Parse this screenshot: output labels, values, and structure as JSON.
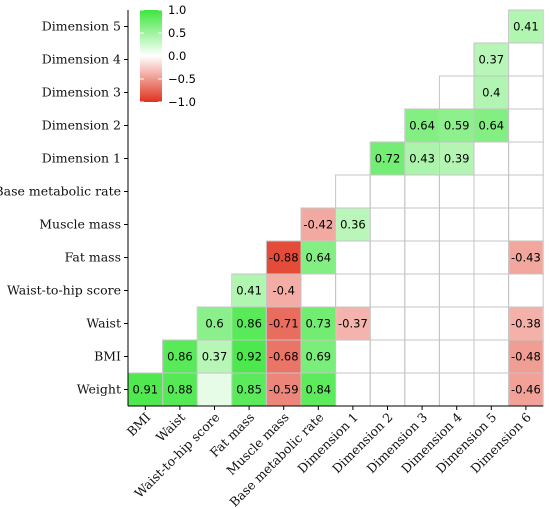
{
  "chart_data": {
    "type": "heatmap",
    "title": "",
    "xlabel": "",
    "ylabel": "",
    "x_labels": [
      "BMI",
      "Waist",
      "Waist-to-hip score",
      "Fat mass",
      "Muscle mass",
      "Base metabolic rate",
      "Dimension 1",
      "Dimension 2",
      "Dimension 3",
      "Dimension 4",
      "Dimension 5",
      "Dimension 6"
    ],
    "y_labels": [
      "Weight",
      "BMI",
      "Waist",
      "Waist-to-hip score",
      "Fat mass",
      "Muscle mass",
      "Base metabolic rate",
      "Dimension 1",
      "Dimension 2",
      "Dimension 3",
      "Dimension 4",
      "Dimension 5"
    ],
    "color_range": [
      -1.0,
      1.0
    ],
    "colors": {
      "low": "#e0321e",
      "mid": "#ffffff",
      "high": "#3ee63e"
    },
    "legend": {
      "position": "top-left",
      "ticks": [
        1.0,
        0.5,
        0.0,
        -0.5,
        -1.0
      ],
      "tick_labels": [
        "1.0",
        "0.5",
        "0.0",
        "−0.5",
        "−1.0"
      ]
    },
    "cells": [
      {
        "x": "BMI",
        "y": "Weight",
        "value": 0.91,
        "label": "0.91"
      },
      {
        "x": "Waist",
        "y": "Weight",
        "value": 0.88,
        "label": "0.88"
      },
      {
        "x": "Waist-to-hip score",
        "y": "Weight",
        "value": 0.13,
        "label": ""
      },
      {
        "x": "Fat mass",
        "y": "Weight",
        "value": 0.85,
        "label": "0.85"
      },
      {
        "x": "Muscle mass",
        "y": "Weight",
        "value": -0.59,
        "label": "-0.59"
      },
      {
        "x": "Base metabolic rate",
        "y": "Weight",
        "value": 0.84,
        "label": "0.84"
      },
      {
        "x": "Dimension 6",
        "y": "Weight",
        "value": -0.46,
        "label": "-0.46"
      },
      {
        "x": "Waist",
        "y": "BMI",
        "value": 0.86,
        "label": "0.86"
      },
      {
        "x": "Waist-to-hip score",
        "y": "BMI",
        "value": 0.37,
        "label": "0.37"
      },
      {
        "x": "Fat mass",
        "y": "BMI",
        "value": 0.92,
        "label": "0.92"
      },
      {
        "x": "Muscle mass",
        "y": "BMI",
        "value": -0.68,
        "label": "-0.68"
      },
      {
        "x": "Base metabolic rate",
        "y": "BMI",
        "value": 0.69,
        "label": "0.69"
      },
      {
        "x": "Dimension 6",
        "y": "BMI",
        "value": -0.48,
        "label": "-0.48"
      },
      {
        "x": "Waist-to-hip score",
        "y": "Waist",
        "value": 0.6,
        "label": "0.6"
      },
      {
        "x": "Fat mass",
        "y": "Waist",
        "value": 0.86,
        "label": "0.86"
      },
      {
        "x": "Muscle mass",
        "y": "Waist",
        "value": -0.71,
        "label": "-0.71"
      },
      {
        "x": "Base metabolic rate",
        "y": "Waist",
        "value": 0.73,
        "label": "0.73"
      },
      {
        "x": "Dimension 1",
        "y": "Waist",
        "value": -0.37,
        "label": "-0.37"
      },
      {
        "x": "Dimension 6",
        "y": "Waist",
        "value": -0.38,
        "label": "-0.38"
      },
      {
        "x": "Fat mass",
        "y": "Waist-to-hip score",
        "value": 0.41,
        "label": "0.41"
      },
      {
        "x": "Muscle mass",
        "y": "Waist-to-hip score",
        "value": -0.4,
        "label": "-0.4"
      },
      {
        "x": "Muscle mass",
        "y": "Fat mass",
        "value": -0.88,
        "label": "-0.88"
      },
      {
        "x": "Base metabolic rate",
        "y": "Fat mass",
        "value": 0.64,
        "label": "0.64"
      },
      {
        "x": "Dimension 6",
        "y": "Fat mass",
        "value": -0.43,
        "label": "-0.43"
      },
      {
        "x": "Base metabolic rate",
        "y": "Muscle mass",
        "value": -0.42,
        "label": "-0.42"
      },
      {
        "x": "Dimension 1",
        "y": "Muscle mass",
        "value": 0.36,
        "label": "0.36"
      },
      {
        "x": "Dimension 1",
        "y": "Base metabolic rate",
        "value": 0,
        "label": ""
      },
      {
        "x": "Dimension 2",
        "y": "Dimension 1",
        "value": 0.72,
        "label": "0.72"
      },
      {
        "x": "Dimension 3",
        "y": "Dimension 1",
        "value": 0.43,
        "label": "0.43"
      },
      {
        "x": "Dimension 4",
        "y": "Dimension 1",
        "value": 0.39,
        "label": "0.39"
      },
      {
        "x": "Dimension 3",
        "y": "Dimension 2",
        "value": 0.64,
        "label": "0.64"
      },
      {
        "x": "Dimension 4",
        "y": "Dimension 2",
        "value": 0.59,
        "label": "0.59"
      },
      {
        "x": "Dimension 5",
        "y": "Dimension 2",
        "value": 0.64,
        "label": "0.64"
      },
      {
        "x": "Dimension 4",
        "y": "Dimension 3",
        "value": 0,
        "label": ""
      },
      {
        "x": "Dimension 5",
        "y": "Dimension 3",
        "value": 0.4,
        "label": "0.4"
      },
      {
        "x": "Dimension 5",
        "y": "Dimension 4",
        "value": 0.37,
        "label": "0.37"
      },
      {
        "x": "Dimension 6",
        "y": "Dimension 4",
        "value": 0,
        "label": ""
      },
      {
        "x": "Dimension 6",
        "y": "Dimension 5",
        "value": 0.41,
        "label": "0.41"
      }
    ]
  }
}
